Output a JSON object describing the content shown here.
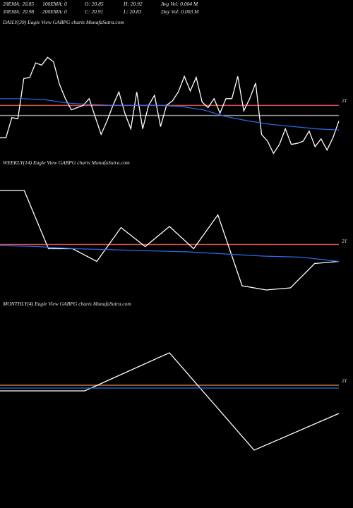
{
  "header": {
    "rows": [
      [
        "20EMA: 20.85",
        "100EMA: 0",
        "O: 20.85",
        "H: 20.92",
        "Avg Vol: 0.004  M"
      ],
      [
        "30EMA: 20.98",
        "200EMA: 0",
        "C: 20.91",
        "L: 20.83",
        "Day Vol: 0.003  M"
      ]
    ]
  },
  "chart_data": [
    {
      "type": "line",
      "title": "DAILY(39) Eagle  View  GABPG charts MunafaSutra.com",
      "ylim": [
        20.4,
        21.6
      ],
      "yticks": [
        21
      ],
      "levels": [
        {
          "value": 20.96,
          "color": "#d0504a"
        },
        {
          "value": 20.87,
          "color": "#9a9a9a"
        }
      ],
      "series": [
        {
          "color": "#ffffff",
          "values": [
            20.67,
            20.67,
            20.85,
            20.84,
            21.2,
            21.21,
            21.34,
            21.32,
            21.39,
            21.35,
            21.15,
            21.02,
            20.92,
            20.94,
            20.96,
            21.02,
            20.86,
            20.7,
            20.82,
            20.96,
            21.08,
            20.89,
            20.75,
            21.08,
            20.75,
            20.96,
            21.05,
            20.77,
            20.96,
            21.0,
            21.08,
            21.22,
            21.09,
            21.21,
            20.99,
            20.94,
            21.02,
            20.89,
            21.02,
            21.02,
            21.22,
            20.91,
            21.02,
            21.16,
            20.7,
            20.64,
            20.53,
            20.61,
            20.75,
            20.61,
            20.62,
            20.64,
            20.73,
            20.59,
            20.66,
            20.56,
            20.67,
            20.82
          ]
        },
        {
          "color": "#2b6cf0",
          "values": [
            21.02,
            21.02,
            21.01,
            20.98,
            20.97,
            20.96,
            20.96,
            20.96,
            20.95,
            20.92,
            20.86,
            20.82,
            20.79,
            20.77,
            20.75,
            20.74
          ]
        }
      ]
    },
    {
      "type": "line",
      "title": "WEEKLY(14) Eagle  View  GABPG charts MunafaSutra.com",
      "ylim": [
        20.5,
        21.5
      ],
      "yticks": [
        21
      ],
      "levels": [
        {
          "value": 20.97,
          "color": "#d0504a"
        }
      ],
      "series": [
        {
          "color": "#ffffff",
          "values": [
            21.48,
            21.48,
            20.93,
            20.93,
            20.81,
            21.13,
            20.95,
            21.14,
            20.93,
            21.25,
            20.58,
            20.54,
            20.56,
            20.79,
            20.81
          ]
        },
        {
          "color": "#2b6cf0",
          "values": [
            20.96,
            20.95,
            20.93,
            20.92,
            20.91,
            20.9,
            20.88,
            20.86,
            20.85,
            20.81
          ]
        }
      ]
    },
    {
      "type": "line",
      "title": "MONTHLY(4) Eagle  View  GABPG charts MunafaSutra.com",
      "ylim": [
        20.5,
        21.5
      ],
      "yticks": [
        21
      ],
      "levels": [
        {
          "value": 20.97,
          "color": "#c8783a"
        }
      ],
      "series": [
        {
          "color": "#ffffff",
          "values": [
            20.93,
            20.93,
            21.2,
            20.51,
            20.77
          ]
        },
        {
          "color": "#2b6cf0",
          "values": [
            20.95,
            20.95,
            20.95,
            20.95,
            20.95
          ]
        }
      ]
    }
  ]
}
